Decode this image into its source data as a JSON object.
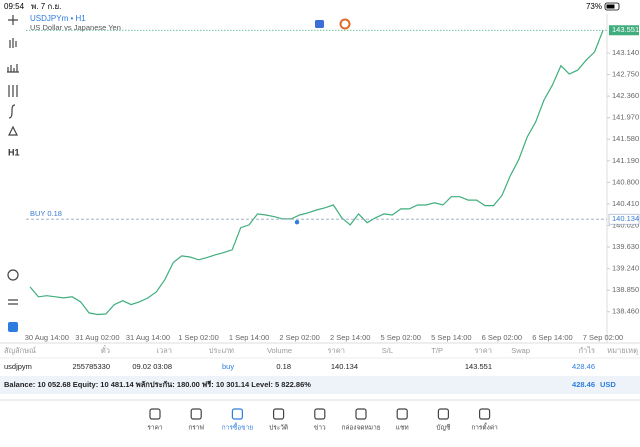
{
  "status_bar": {
    "time": "09:54",
    "date": "พ. 7 ก.ย.",
    "battery": "73%"
  },
  "toolbar": {
    "timeframe": "H1"
  },
  "chart_data": {
    "type": "line",
    "title": "USDJPYm • H1",
    "subtitle": "US Dollar vs Japanese Yen",
    "color": "#3fae7c",
    "grid": false,
    "categories": [
      null,
      null,
      "30 Aug 14:00",
      null,
      null,
      null,
      null,
      null,
      "31 Aug 02:00",
      null,
      null,
      null,
      null,
      null,
      "31 Aug 14:00",
      null,
      null,
      null,
      null,
      null,
      "1 Sep 02:00",
      null,
      null,
      null,
      null,
      null,
      "1 Sep 14:00",
      null,
      null,
      null,
      null,
      null,
      "2 Sep 02:00",
      null,
      null,
      null,
      null,
      null,
      "2 Sep 14:00",
      null,
      null,
      null,
      null,
      null,
      "5 Sep 02:00",
      null,
      null,
      null,
      null,
      null,
      "5 Sep 14:00",
      null,
      null,
      null,
      null,
      null,
      "6 Sep 02:00",
      null,
      null,
      null,
      null,
      null,
      "6 Sep 14:00",
      null,
      null,
      null,
      null,
      null,
      "7 Sep 02:00"
    ],
    "values": [
      138.91,
      138.73,
      138.75,
      138.73,
      138.71,
      138.73,
      138.64,
      138.44,
      138.41,
      138.42,
      138.59,
      138.66,
      138.59,
      138.64,
      138.71,
      138.82,
      139.04,
      139.35,
      139.47,
      139.45,
      139.4,
      139.44,
      139.49,
      139.53,
      139.58,
      139.98,
      140.03,
      140.23,
      140.21,
      140.18,
      140.14,
      140.14,
      140.21,
      140.25,
      140.3,
      140.34,
      140.39,
      140.16,
      140.03,
      140.23,
      140.07,
      140.16,
      140.23,
      140.21,
      140.32,
      140.32,
      140.39,
      140.39,
      140.43,
      140.39,
      140.54,
      140.54,
      140.48,
      140.48,
      140.38,
      140.38,
      140.56,
      140.92,
      141.21,
      141.62,
      141.89,
      142.29,
      142.56,
      142.91,
      142.76,
      142.83,
      143.01,
      143.16,
      143.551
    ],
    "ylim": [
      138.13,
      143.61
    ],
    "yticks": [
      {
        "value": 143.14,
        "label": "143.140"
      },
      {
        "value": 142.75,
        "label": "142.750"
      },
      {
        "value": 142.36,
        "label": "142.360"
      },
      {
        "value": 141.97,
        "label": "141.970"
      },
      {
        "value": 141.58,
        "label": "141.580"
      },
      {
        "value": 141.19,
        "label": "141.190"
      },
      {
        "value": 140.8,
        "label": "140.800"
      },
      {
        "value": 140.41,
        "label": "140.410"
      },
      {
        "value": 140.02,
        "label": "140.020"
      },
      {
        "value": 139.63,
        "label": "139.630"
      },
      {
        "value": 139.24,
        "label": "139.240"
      },
      {
        "value": 138.85,
        "label": "138.850"
      },
      {
        "value": 138.46,
        "label": "138.460"
      }
    ],
    "current_price": 143.551,
    "buy_line": {
      "label": "BUY 0.18",
      "price": 140.134
    }
  },
  "positions": {
    "columns": [
      "สัญลักษณ์",
      "ตั๋ว",
      "เวลา",
      "ประเภท",
      "Volume",
      "ราคา",
      "S/L",
      "T/P",
      "ราคา",
      "Swap",
      "กำไร",
      "หมายเหตุ"
    ],
    "row": {
      "symbol": "usdjpym",
      "ticket": 255785330,
      "time": "09.02 03:08",
      "type": "buy",
      "volume": 0.18,
      "open_price": 140.134,
      "price": 143.551,
      "profit": 428.46
    }
  },
  "balance": {
    "text": "Balance: 10 052.68 Equity: 10 481.14 พลักประกัน: 180.00 ฟรี: 10 301.14 Level: 5 822.86%",
    "profit": 428.46,
    "currency": "USD"
  },
  "nav": [
    "ราคา",
    "กราฟ",
    "การซื้อขาย",
    "ประวัติ",
    "ข่าว",
    "กล่องจดหมาย",
    "แชท",
    "บัญชี",
    "การตั้งค่า"
  ]
}
